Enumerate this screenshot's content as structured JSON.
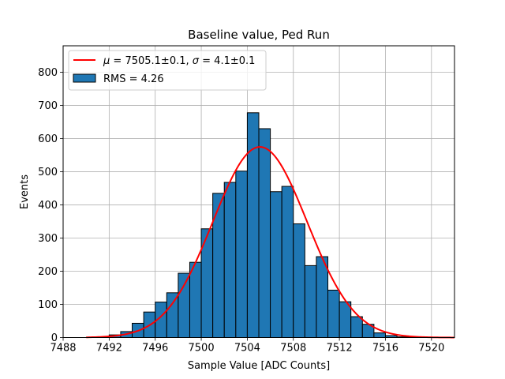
{
  "chart_data": {
    "type": "histogram",
    "title": "Baseline value, Ped Run",
    "xlabel": "Sample Value [ADC Counts]",
    "ylabel": "Events",
    "xlim": [
      7488,
      7522
    ],
    "ylim": [
      0,
      880
    ],
    "xticks": [
      7488,
      7492,
      7496,
      7500,
      7504,
      7508,
      7512,
      7516,
      7520
    ],
    "yticks": [
      0,
      100,
      200,
      300,
      400,
      500,
      600,
      700,
      800
    ],
    "grid": true,
    "legend_position": "top-left",
    "histogram": {
      "name": "RMS = 4.26",
      "color": "#1f77b4",
      "edge_color": "#000000",
      "bins": [
        {
          "x0": 7490,
          "x1": 7491,
          "value": 0
        },
        {
          "x0": 7491,
          "x1": 7492,
          "value": 2
        },
        {
          "x0": 7492,
          "x1": 7493,
          "value": 8
        },
        {
          "x0": 7493,
          "x1": 7494,
          "value": 18
        },
        {
          "x0": 7494,
          "x1": 7495,
          "value": 43
        },
        {
          "x0": 7495,
          "x1": 7496,
          "value": 77
        },
        {
          "x0": 7496,
          "x1": 7497,
          "value": 107
        },
        {
          "x0": 7497,
          "x1": 7498,
          "value": 135
        },
        {
          "x0": 7498,
          "x1": 7499,
          "value": 194
        },
        {
          "x0": 7499,
          "x1": 7500,
          "value": 227
        },
        {
          "x0": 7500,
          "x1": 7501,
          "value": 328
        },
        {
          "x0": 7501,
          "x1": 7502,
          "value": 435
        },
        {
          "x0": 7502,
          "x1": 7503,
          "value": 468
        },
        {
          "x0": 7503,
          "x1": 7504,
          "value": 502
        },
        {
          "x0": 7504,
          "x1": 7505,
          "value": 678
        },
        {
          "x0": 7505,
          "x1": 7506,
          "value": 630
        },
        {
          "x0": 7506,
          "x1": 7507,
          "value": 440
        },
        {
          "x0": 7507,
          "x1": 7508,
          "value": 456
        },
        {
          "x0": 7508,
          "x1": 7509,
          "value": 343
        },
        {
          "x0": 7509,
          "x1": 7510,
          "value": 217
        },
        {
          "x0": 7510,
          "x1": 7511,
          "value": 244
        },
        {
          "x0": 7511,
          "x1": 7512,
          "value": 143
        },
        {
          "x0": 7512,
          "x1": 7513,
          "value": 108
        },
        {
          "x0": 7513,
          "x1": 7514,
          "value": 63
        },
        {
          "x0": 7514,
          "x1": 7515,
          "value": 40
        },
        {
          "x0": 7515,
          "x1": 7516,
          "value": 14
        },
        {
          "x0": 7516,
          "x1": 7517,
          "value": 6
        },
        {
          "x0": 7517,
          "x1": 7518,
          "value": 2
        },
        {
          "x0": 7518,
          "x1": 7519,
          "value": 1
        },
        {
          "x0": 7519,
          "x1": 7520,
          "value": 0
        }
      ]
    },
    "fit": {
      "type": "gaussian",
      "name": "μ = 7505.1±0.1, σ = 4.1±0.1",
      "label_parts": {
        "mu_symbol": "μ",
        "mu_text": " = 7505.1±0.1, ",
        "sigma_symbol": "σ",
        "sigma_text": " = 4.1±0.1"
      },
      "mu": 7505.1,
      "sigma": 4.1,
      "amplitude": 575,
      "x_range": [
        7490,
        7522
      ],
      "color": "#ff0000"
    }
  }
}
